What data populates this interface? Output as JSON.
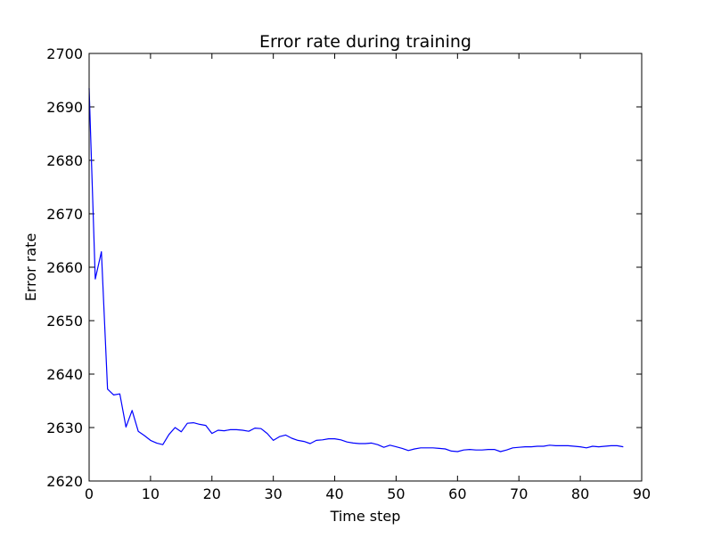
{
  "chart_data": {
    "type": "line",
    "title": "Error rate during training",
    "xlabel": "Time step",
    "ylabel": "Error rate",
    "xlim": [
      0,
      90
    ],
    "ylim": [
      2620,
      2700
    ],
    "xticks": [
      0,
      10,
      20,
      30,
      40,
      50,
      60,
      70,
      80,
      90
    ],
    "yticks": [
      2620,
      2630,
      2640,
      2650,
      2660,
      2670,
      2680,
      2690,
      2700
    ],
    "grid": false,
    "legend": false,
    "line_color": "#0000ff",
    "series": [
      {
        "x": [
          0,
          1,
          2,
          3,
          4,
          5,
          6,
          7,
          8,
          9,
          10,
          11,
          12,
          13,
          14,
          15,
          16,
          17,
          18,
          19,
          20,
          21,
          22,
          23,
          24,
          25,
          26,
          27,
          28,
          29,
          30,
          31,
          32,
          33,
          34,
          35,
          36,
          37,
          38,
          39,
          40,
          41,
          42,
          43,
          44,
          45,
          46,
          47,
          48,
          49,
          50,
          51,
          52,
          53,
          54,
          55,
          56,
          57,
          58,
          59,
          60,
          61,
          62,
          63,
          64,
          65,
          66,
          67,
          68,
          69,
          70,
          71,
          72,
          73,
          74,
          75,
          76,
          77,
          78,
          79,
          80,
          81,
          82,
          83,
          84,
          85,
          86,
          87
        ],
        "values": [
          2693.5,
          2657.8,
          2662.9,
          2637.2,
          2636.1,
          2636.3,
          2630.1,
          2633.2,
          2629.3,
          2628.5,
          2627.6,
          2627.1,
          2626.8,
          2628.7,
          2630.0,
          2629.2,
          2630.8,
          2630.9,
          2630.6,
          2630.4,
          2628.9,
          2629.5,
          2629.4,
          2629.6,
          2629.6,
          2629.5,
          2629.3,
          2629.9,
          2629.8,
          2628.9,
          2627.6,
          2628.3,
          2628.6,
          2628.0,
          2627.6,
          2627.4,
          2627.0,
          2627.6,
          2627.7,
          2627.9,
          2627.9,
          2627.7,
          2627.3,
          2627.1,
          2627.0,
          2627.0,
          2627.1,
          2626.8,
          2626.3,
          2626.7,
          2626.4,
          2626.1,
          2625.7,
          2626.0,
          2626.2,
          2626.2,
          2626.2,
          2626.1,
          2626.0,
          2625.6,
          2625.5,
          2625.8,
          2625.9,
          2625.8,
          2625.8,
          2625.9,
          2625.9,
          2625.5,
          2625.8,
          2626.2,
          2626.3,
          2626.4,
          2626.4,
          2626.5,
          2626.5,
          2626.7,
          2626.6,
          2626.6,
          2626.6,
          2626.5,
          2626.4,
          2626.2,
          2626.5,
          2626.4,
          2626.5,
          2626.6,
          2626.6,
          2626.4
        ]
      }
    ]
  }
}
